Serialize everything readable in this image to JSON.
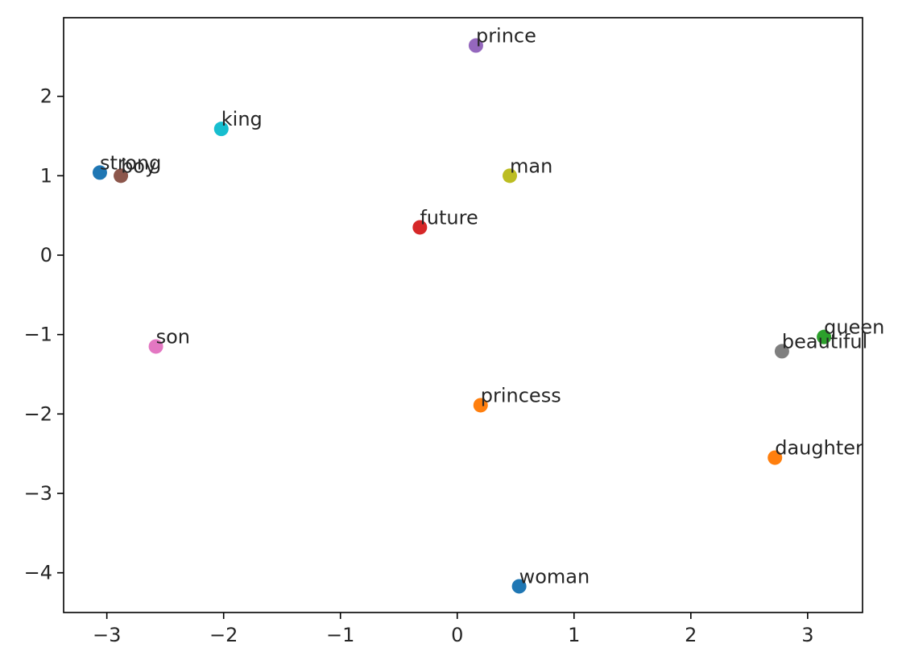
{
  "chart_data": {
    "type": "scatter",
    "title": "",
    "xlabel": "",
    "ylabel": "",
    "xlim": [
      -3.37,
      3.47
    ],
    "ylim": [
      -4.5,
      2.99
    ],
    "xticks": [
      -3,
      -2,
      -1,
      0,
      1,
      2,
      3
    ],
    "yticks": [
      -4,
      -3,
      -2,
      -1,
      0,
      1,
      2
    ],
    "xtick_labels": [
      "−3",
      "−2",
      "−1",
      "0",
      "1",
      "2",
      "3"
    ],
    "ytick_labels": [
      "−4",
      "−3",
      "−2",
      "−1",
      "0",
      "1",
      "2"
    ],
    "grid": false,
    "legend": false,
    "points": [
      {
        "label": "strong",
        "x": -3.06,
        "y": 1.04,
        "color": "#1f77b4"
      },
      {
        "label": "boy",
        "x": -2.88,
        "y": 1.0,
        "color": "#8c564b"
      },
      {
        "label": "king",
        "x": -2.02,
        "y": 1.59,
        "color": "#17becf"
      },
      {
        "label": "son",
        "x": -2.58,
        "y": -1.15,
        "color": "#e377c2"
      },
      {
        "label": "prince",
        "x": 0.16,
        "y": 2.64,
        "color": "#9467bd"
      },
      {
        "label": "man",
        "x": 0.45,
        "y": 1.0,
        "color": "#bcbd22"
      },
      {
        "label": "future",
        "x": -0.32,
        "y": 0.35,
        "color": "#d62728"
      },
      {
        "label": "princess",
        "x": 0.2,
        "y": -1.89,
        "color": "#ff7f0e"
      },
      {
        "label": "queen",
        "x": 3.14,
        "y": -1.03,
        "color": "#2ca02c"
      },
      {
        "label": "beautiful",
        "x": 2.78,
        "y": -1.21,
        "color": "#7f7f7f"
      },
      {
        "label": "daughter",
        "x": 2.72,
        "y": -2.55,
        "color": "#ff7f0e"
      },
      {
        "label": "woman",
        "x": 0.53,
        "y": -4.17,
        "color": "#1f77b4"
      }
    ]
  }
}
